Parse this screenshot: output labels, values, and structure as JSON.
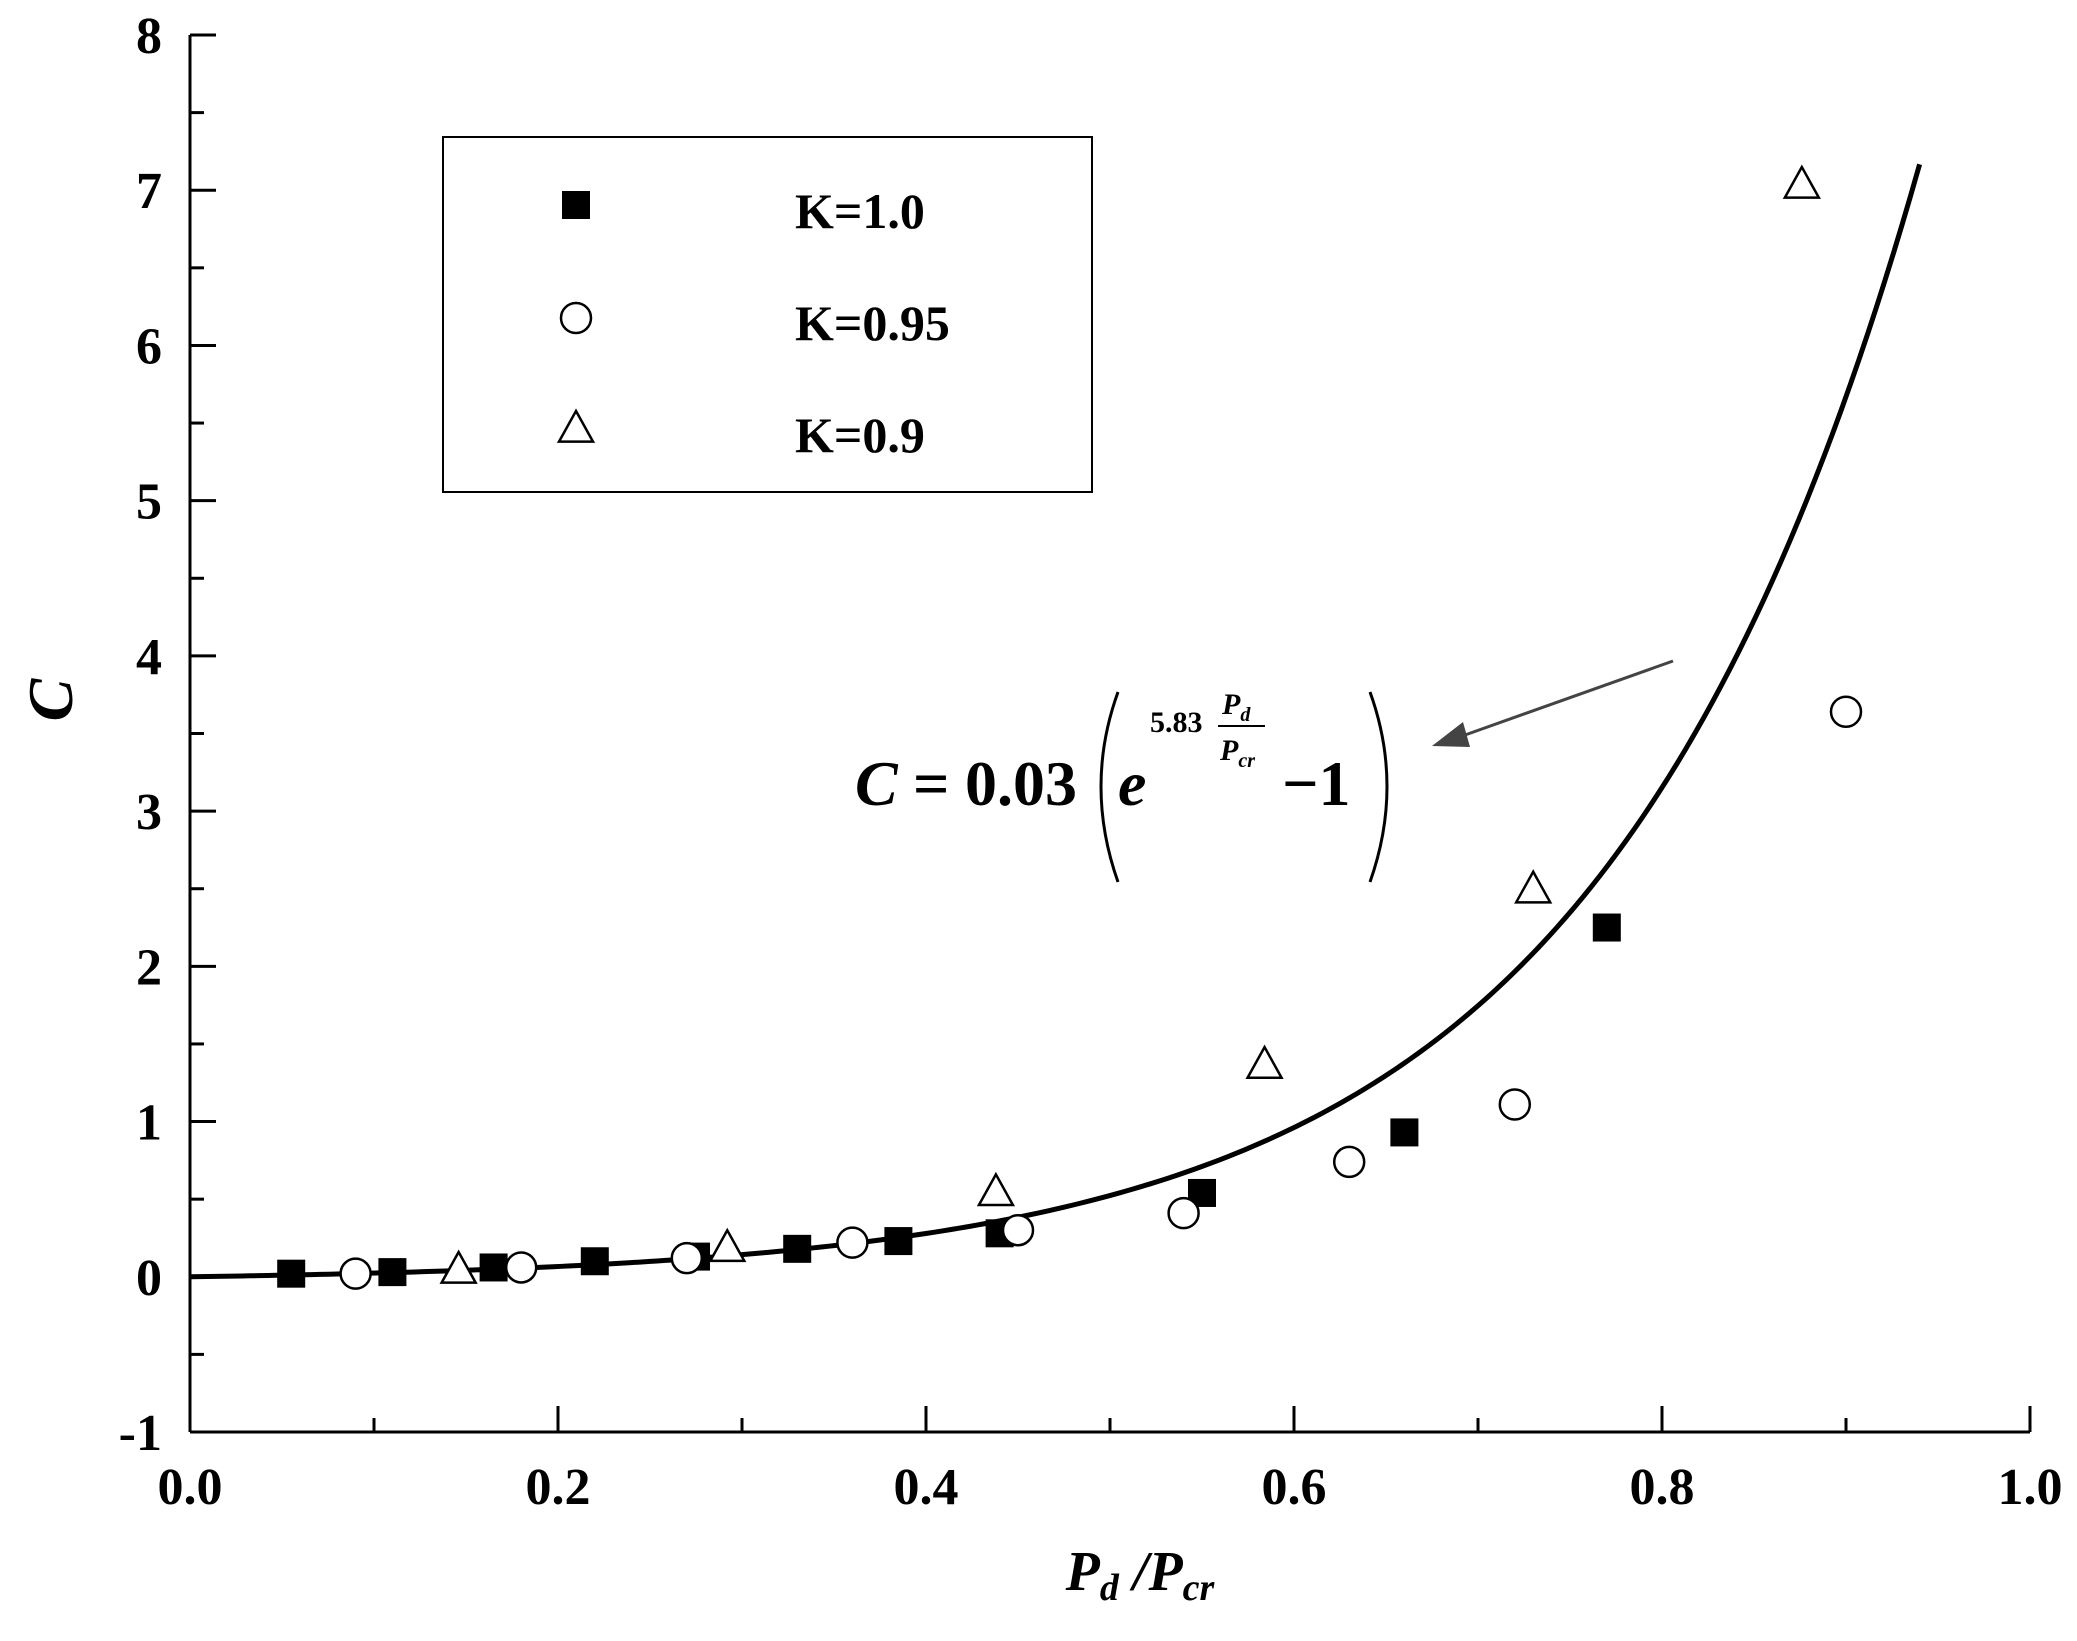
{
  "chart_data": {
    "type": "scatter",
    "xlabel": {
      "main": "P",
      "sub1": "d",
      "slash": " /",
      "main2": "P",
      "sub2": "cr"
    },
    "ylabel": "C",
    "xlim": [
      0.0,
      1.0
    ],
    "ylim": [
      -1,
      8
    ],
    "x_ticks": [
      "0.0",
      "0.2",
      "0.4",
      "0.6",
      "0.8",
      "1.0"
    ],
    "y_ticks": [
      "-1",
      "0",
      "1",
      "2",
      "3",
      "4",
      "5",
      "6",
      "7",
      "8"
    ],
    "grid": false,
    "legend_position": "top-left",
    "series": [
      {
        "name": "K=1.0",
        "marker": "filled-square",
        "points": [
          [
            0.055,
            0.02
          ],
          [
            0.11,
            0.03
          ],
          [
            0.165,
            0.06
          ],
          [
            0.22,
            0.1
          ],
          [
            0.275,
            0.13
          ],
          [
            0.33,
            0.18
          ],
          [
            0.385,
            0.23
          ],
          [
            0.44,
            0.28
          ],
          [
            0.55,
            0.54
          ],
          [
            0.66,
            0.93
          ],
          [
            0.77,
            2.25
          ]
        ]
      },
      {
        "name": "K=0.95",
        "marker": "open-circle",
        "points": [
          [
            0.09,
            0.02
          ],
          [
            0.18,
            0.06
          ],
          [
            0.27,
            0.12
          ],
          [
            0.36,
            0.22
          ],
          [
            0.45,
            0.3
          ],
          [
            0.54,
            0.41
          ],
          [
            0.63,
            0.74
          ],
          [
            0.72,
            1.11
          ],
          [
            0.9,
            3.64
          ]
        ]
      },
      {
        "name": "K=0.9",
        "marker": "open-triangle",
        "points": [
          [
            0.146,
            0.05
          ],
          [
            0.292,
            0.19
          ],
          [
            0.438,
            0.55
          ],
          [
            0.584,
            1.37
          ],
          [
            0.73,
            2.5
          ],
          [
            0.876,
            7.04
          ]
        ]
      }
    ],
    "fit_curve": {
      "coefficient": 0.03,
      "exponent": 5.83,
      "x_range": [
        0.0,
        0.94
      ]
    },
    "equation": {
      "lhs": "C",
      "equals": "=",
      "coef": "0.03",
      "e": "e",
      "exp_num": "5.83",
      "frac_top_main": "P",
      "frac_top_sub": "d",
      "frac_bot_main": "P",
      "frac_bot_sub": "cr",
      "minus_one": "−1"
    }
  }
}
